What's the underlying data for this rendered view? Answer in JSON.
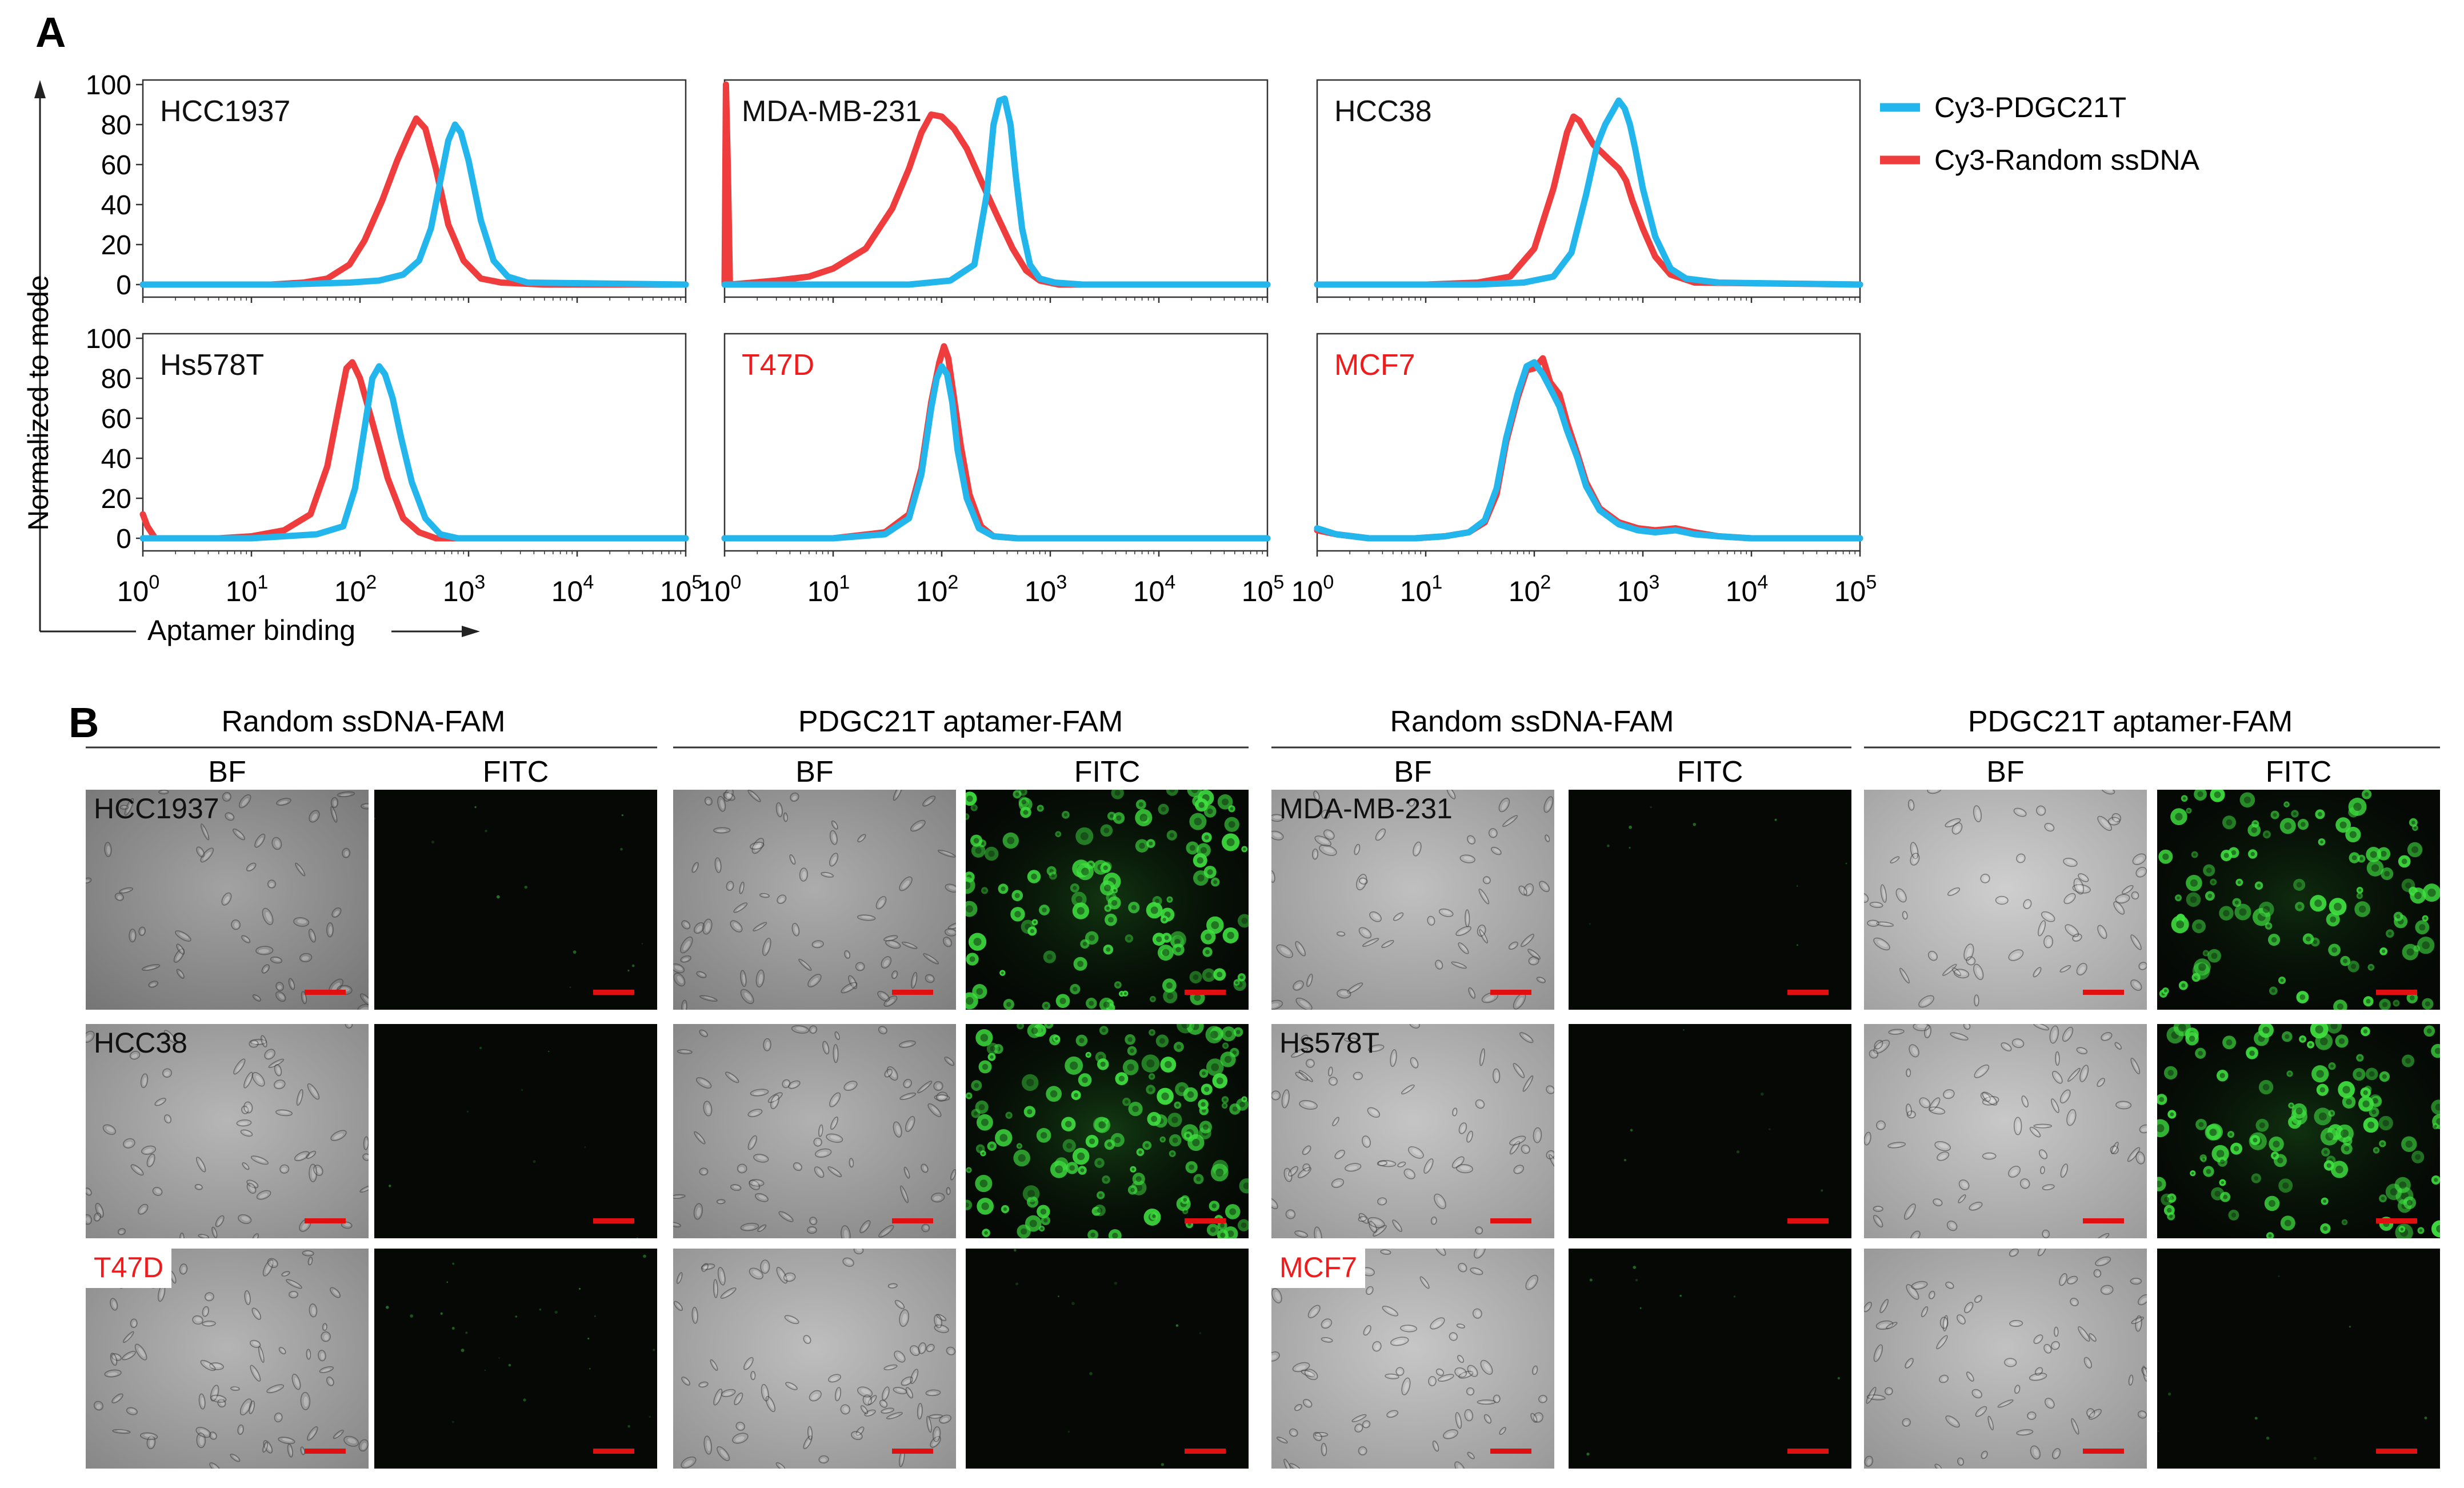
{
  "figure": {
    "panel_a_letter": "A",
    "panel_b_letter": "B"
  },
  "chart_data": [
    {
      "type": "line",
      "title": "HCC1937",
      "title_color": "#111111",
      "x_scale": "log",
      "xlim": [
        1,
        100000
      ],
      "ylim": [
        0,
        100
      ],
      "series": [
        {
          "name": "Cy3-Random ssDNA",
          "color": "#ef3d3d",
          "x": [
            1,
            5,
            15,
            30,
            50,
            80,
            110,
            160,
            220,
            280,
            330,
            400,
            500,
            650,
            900,
            1300,
            2000,
            5000,
            100000
          ],
          "y": [
            0,
            0,
            0,
            1,
            3,
            10,
            22,
            42,
            62,
            75,
            83,
            78,
            58,
            30,
            12,
            3,
            1,
            0,
            0
          ]
        },
        {
          "name": "Cy3-PDGC21T",
          "color": "#22b6ec",
          "x": [
            1,
            20,
            80,
            150,
            250,
            350,
            450,
            550,
            650,
            750,
            850,
            1000,
            1300,
            1700,
            2300,
            3500,
            100000
          ],
          "y": [
            0,
            0,
            1,
            2,
            5,
            12,
            28,
            52,
            72,
            80,
            76,
            62,
            32,
            12,
            4,
            1,
            0
          ]
        }
      ]
    },
    {
      "type": "line",
      "title": "MDA-MB-231",
      "title_color": "#111111",
      "x_scale": "log",
      "xlim": [
        1,
        100000
      ],
      "ylim": [
        0,
        100
      ],
      "series": [
        {
          "name": "Cy3-Random ssDNA",
          "color": "#ef3d3d",
          "x": [
            1,
            1.03,
            1.07,
            1.12,
            3,
            6,
            10,
            20,
            35,
            50,
            65,
            80,
            100,
            130,
            170,
            230,
            320,
            450,
            600,
            800,
            1200,
            100000
          ],
          "y": [
            0,
            100,
            60,
            0,
            2,
            4,
            8,
            18,
            38,
            58,
            76,
            85,
            84,
            78,
            68,
            52,
            35,
            18,
            7,
            2,
            0,
            0
          ]
        },
        {
          "name": "Cy3-PDGC21T",
          "color": "#22b6ec",
          "x": [
            1,
            50,
            120,
            200,
            260,
            300,
            340,
            380,
            430,
            480,
            550,
            650,
            800,
            1100,
            2000,
            100000
          ],
          "y": [
            0,
            0,
            2,
            10,
            45,
            80,
            92,
            93,
            80,
            55,
            28,
            10,
            3,
            1,
            0,
            0
          ]
        }
      ]
    },
    {
      "type": "line",
      "title": "HCC38",
      "title_color": "#111111",
      "x_scale": "log",
      "xlim": [
        1,
        100000
      ],
      "ylim": [
        0,
        100
      ],
      "series": [
        {
          "name": "Cy3-Random ssDNA",
          "color": "#ef3d3d",
          "x": [
            1,
            10,
            30,
            60,
            100,
            150,
            200,
            230,
            260,
            300,
            350,
            420,
            500,
            600,
            700,
            800,
            1000,
            1300,
            1800,
            3000,
            100000
          ],
          "y": [
            0,
            0,
            1,
            4,
            18,
            48,
            76,
            84,
            82,
            76,
            70,
            66,
            62,
            58,
            52,
            42,
            28,
            14,
            5,
            1,
            0
          ]
        },
        {
          "name": "Cy3-PDGC21T",
          "color": "#22b6ec",
          "x": [
            1,
            30,
            80,
            150,
            220,
            300,
            380,
            450,
            520,
            600,
            680,
            760,
            850,
            1000,
            1300,
            1800,
            2500,
            5000,
            100000
          ],
          "y": [
            0,
            0,
            1,
            4,
            16,
            45,
            70,
            80,
            86,
            92,
            88,
            80,
            68,
            48,
            24,
            8,
            3,
            1,
            0
          ]
        }
      ]
    },
    {
      "type": "line",
      "title": "Hs578T",
      "title_color": "#111111",
      "x_scale": "log",
      "xlim": [
        1,
        100000
      ],
      "ylim": [
        0,
        100
      ],
      "series": [
        {
          "name": "Cy3-Random ssDNA",
          "color": "#ef3d3d",
          "x": [
            1,
            1.1,
            1.3,
            2,
            5,
            10,
            20,
            35,
            50,
            65,
            75,
            85,
            100,
            130,
            180,
            250,
            350,
            500,
            100000
          ],
          "y": [
            12,
            6,
            0,
            0,
            0,
            1,
            4,
            12,
            36,
            68,
            85,
            88,
            80,
            58,
            30,
            10,
            3,
            0,
            0
          ]
        },
        {
          "name": "Cy3-PDGC21T",
          "color": "#22b6ec",
          "x": [
            1,
            10,
            40,
            70,
            90,
            110,
            130,
            150,
            170,
            200,
            240,
            300,
            400,
            550,
            800,
            100000
          ],
          "y": [
            0,
            0,
            2,
            6,
            25,
            55,
            80,
            86,
            82,
            70,
            50,
            28,
            10,
            2,
            0,
            0
          ]
        }
      ]
    },
    {
      "type": "line",
      "title": "T47D",
      "title_color": "#ee1c1c",
      "x_scale": "log",
      "xlim": [
        1,
        100000
      ],
      "ylim": [
        0,
        100
      ],
      "series": [
        {
          "name": "Cy3-Random ssDNA",
          "color": "#ef3d3d",
          "x": [
            1,
            10,
            30,
            50,
            65,
            80,
            95,
            105,
            115,
            130,
            150,
            180,
            230,
            300,
            500,
            100000
          ],
          "y": [
            0,
            0,
            3,
            12,
            35,
            68,
            88,
            96,
            90,
            70,
            46,
            22,
            6,
            1,
            0,
            0
          ]
        },
        {
          "name": "Cy3-PDGC21T",
          "color": "#22b6ec",
          "x": [
            1,
            10,
            30,
            50,
            65,
            80,
            90,
            100,
            112,
            125,
            140,
            170,
            220,
            300,
            500,
            100000
          ],
          "y": [
            0,
            0,
            2,
            10,
            32,
            65,
            80,
            86,
            82,
            68,
            44,
            20,
            5,
            1,
            0,
            0
          ]
        }
      ]
    },
    {
      "type": "line",
      "title": "MCF7",
      "title_color": "#ee1c1c",
      "x_scale": "log",
      "xlim": [
        1,
        100000
      ],
      "ylim": [
        0,
        100
      ],
      "series": [
        {
          "name": "Cy3-Random ssDNA",
          "color": "#ef3d3d",
          "x": [
            1,
            1.5,
            3,
            8,
            15,
            25,
            35,
            45,
            55,
            70,
            85,
            100,
            120,
            140,
            170,
            200,
            250,
            300,
            400,
            600,
            900,
            1300,
            2000,
            3000,
            5000,
            10000,
            100000
          ],
          "y": [
            4,
            2,
            0,
            0,
            1,
            3,
            8,
            22,
            48,
            70,
            84,
            85,
            90,
            78,
            72,
            58,
            42,
            28,
            15,
            8,
            5,
            4,
            5,
            3,
            1,
            0,
            0
          ]
        },
        {
          "name": "Cy3-PDGC21T",
          "color": "#22b6ec",
          "x": [
            1,
            1.5,
            3,
            8,
            15,
            25,
            35,
            45,
            55,
            70,
            85,
            100,
            120,
            140,
            170,
            200,
            250,
            300,
            400,
            600,
            900,
            1300,
            2000,
            3000,
            5000,
            10000,
            100000
          ],
          "y": [
            5,
            2,
            0,
            0,
            1,
            3,
            9,
            25,
            50,
            72,
            86,
            88,
            82,
            75,
            66,
            54,
            40,
            26,
            14,
            7,
            4,
            3,
            4,
            2,
            1,
            0,
            0
          ]
        }
      ]
    }
  ],
  "axes": {
    "ylabel": "Normalized to mode",
    "xlabel": "Aptamer binding",
    "yticks": [
      "0",
      "20",
      "40",
      "60",
      "80",
      "100"
    ],
    "xticks": [
      {
        "base": "10",
        "exp": "0"
      },
      {
        "base": "10",
        "exp": "1"
      },
      {
        "base": "10",
        "exp": "2"
      },
      {
        "base": "10",
        "exp": "3"
      },
      {
        "base": "10",
        "exp": "4"
      },
      {
        "base": "10",
        "exp": "5"
      }
    ]
  },
  "legend": [
    {
      "name": "Cy3-PDGC21T",
      "color": "#22b6ec"
    },
    {
      "name": "Cy3-Random ssDNA",
      "color": "#ef3d3d"
    }
  ],
  "panel_b": {
    "groups": [
      {
        "title": "Random ssDNA-FAM",
        "cols": [
          "BF",
          "FITC"
        ]
      },
      {
        "title": "PDGC21T aptamer-FAM",
        "cols": [
          "BF",
          "FITC"
        ]
      },
      {
        "title": "Random ssDNA-FAM",
        "cols": [
          "BF",
          "FITC"
        ]
      },
      {
        "title": "PDGC21T aptamer-FAM",
        "cols": [
          "BF",
          "FITC"
        ]
      }
    ],
    "row_labels": [
      {
        "left": "HCC1937",
        "right": "MDA-MB-231",
        "left_color": "#111111",
        "right_color": "#111111"
      },
      {
        "left": "HCC38",
        "right": "Hs578T",
        "left_color": "#111111",
        "right_color": "#111111"
      },
      {
        "left": "T47D",
        "right": "MCF7",
        "left_color": "#ee1c1c",
        "right_color": "#ee1c1c"
      }
    ],
    "fluorescence_intensity": [
      [
        0.04,
        0.85,
        0.02,
        0.65
      ],
      [
        0.0,
        0.95,
        0.0,
        0.75
      ],
      [
        0.12,
        0.02,
        0.0,
        0.0
      ]
    ],
    "bf_tone": [
      [
        "#8e8e8e",
        "#9a9a9a",
        "#b2b2b2",
        "#c4c4c4"
      ],
      [
        "#a6a6a6",
        "#a0a0a0",
        "#b8b8b8",
        "#bcbcbc"
      ],
      [
        "#a4a4a4",
        "#b0b0b0",
        "#bababa",
        "#b4b4b4"
      ]
    ]
  }
}
